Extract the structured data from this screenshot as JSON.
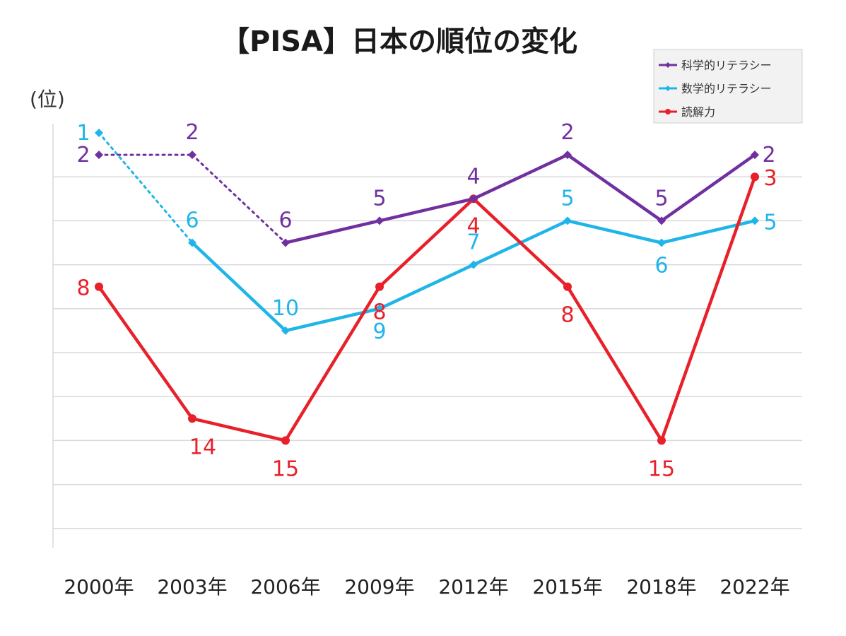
{
  "chart_data": {
    "type": "line",
    "title": "【PISA】日本の順位の変化",
    "ylabel": "(位)",
    "xlabel": "",
    "categories": [
      "2000年",
      "2003年",
      "2006年",
      "2009年",
      "2012年",
      "2015年",
      "2018年",
      "2022年"
    ],
    "y_axis": {
      "inverted": true,
      "range": [
        1,
        19
      ],
      "tick_labels_shown": false,
      "gridlines": true
    },
    "legend_position": "top-right",
    "series": [
      {
        "name": "科学的リテラシー",
        "color": "#7030a0",
        "marker": "diamond",
        "values": [
          2,
          2,
          6,
          5,
          4,
          2,
          5,
          2
        ],
        "dotted_through_index": 2
      },
      {
        "name": "数学的リテラシー",
        "color": "#1fb5e8",
        "marker": "diamond",
        "values": [
          1,
          6,
          10,
          9,
          7,
          5,
          6,
          5
        ],
        "dotted_through_index": 1
      },
      {
        "name": "読解力",
        "color": "#e8202a",
        "marker": "circle",
        "values": [
          8,
          14,
          15,
          8,
          4,
          8,
          15,
          3
        ],
        "dotted_through_index": 0
      }
    ]
  }
}
